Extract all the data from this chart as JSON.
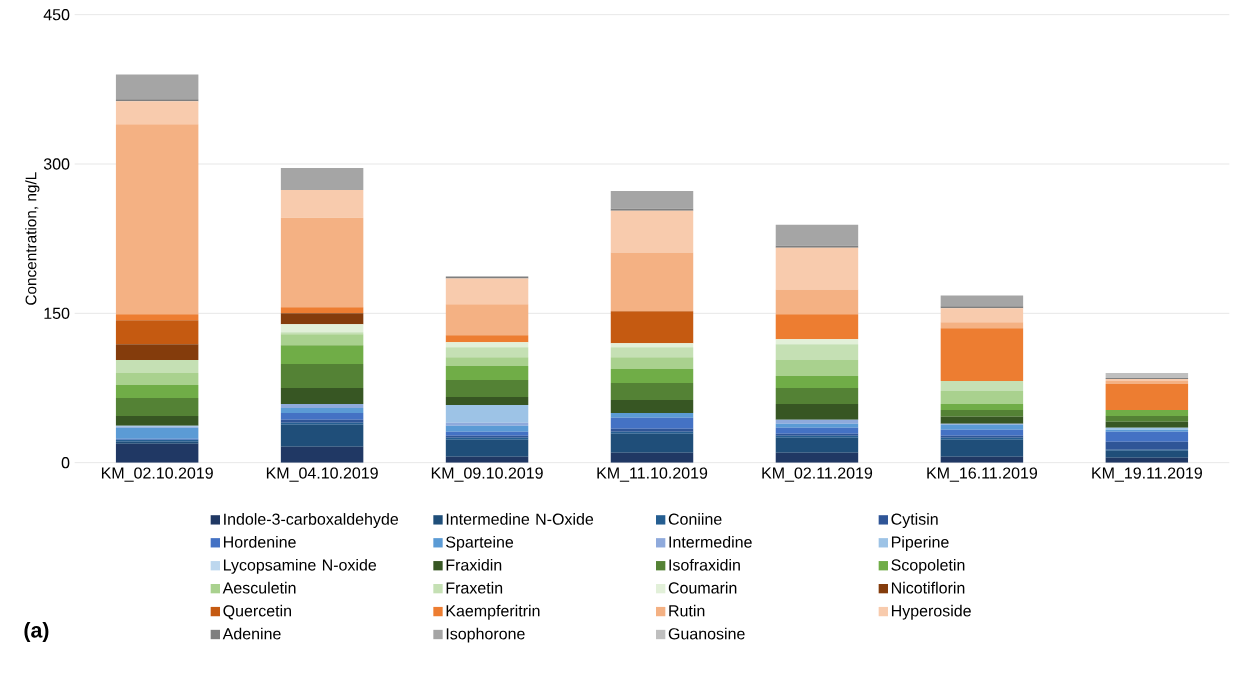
{
  "chart_data": {
    "type": "bar",
    "stacked": true,
    "ylabel": "Concentration, ng/L",
    "annotations": [
      "**(a)**"
    ],
    "categories": [
      "KM_02.10.2019",
      "KM_04.10.2019",
      "KM_09.10.2019",
      "KM_11.10.2019",
      "KM_02.11.2019",
      "KM_16.11.2019",
      "KM_19.11.2019"
    ],
    "ylim": [
      0,
      450
    ],
    "yticks": [
      0,
      150,
      300,
      450
    ],
    "grid": "y",
    "legend": "bottom",
    "series": [
      {
        "name": "Indole-3-carboxaldehyde",
        "color": "#203864",
        "values": [
          19,
          16,
          6,
          10,
          10,
          6,
          5
        ]
      },
      {
        "name": "Intermedine N-Oxide",
        "color": "#1f4e79",
        "values": [
          2,
          22,
          17,
          19,
          15,
          17,
          7
        ]
      },
      {
        "name": "Coniine",
        "color": "#255e91",
        "values": [
          2,
          2,
          2,
          2,
          2,
          2,
          1
        ]
      },
      {
        "name": "Cytisin",
        "color": "#2f5597",
        "values": [
          0,
          3,
          2,
          3,
          2,
          2,
          8
        ]
      },
      {
        "name": "Hordenine",
        "color": "#4472c4",
        "values": [
          1,
          7,
          4,
          11,
          6,
          6,
          10
        ]
      },
      {
        "name": "Sparteine",
        "color": "#5b9bd5",
        "values": [
          11,
          5,
          6,
          5,
          4,
          5,
          2
        ]
      },
      {
        "name": "Intermedine",
        "color": "#8faadc",
        "values": [
          1,
          4,
          3,
          0,
          4,
          1,
          0
        ]
      },
      {
        "name": "Piperine",
        "color": "#9dc3e6",
        "values": [
          1,
          0,
          18,
          0,
          0,
          0,
          2
        ]
      },
      {
        "name": "Lycopsamine N-oxide",
        "color": "#bdd7ee",
        "values": [
          null,
          0,
          0,
          0,
          0,
          0,
          0
        ]
      },
      {
        "name": "Fraxidin",
        "color": "#375623",
        "values": [
          10,
          16,
          8,
          13,
          16,
          7,
          6
        ]
      },
      {
        "name": "Isofraxidin",
        "color": "#548235",
        "values": [
          18,
          24,
          17,
          17,
          16,
          7,
          6
        ]
      },
      {
        "name": "Scopoletin",
        "color": "#70ad47",
        "values": [
          13,
          19,
          14,
          14,
          12,
          6,
          6
        ]
      },
      {
        "name": "Aesculetin",
        "color": "#a9d18e",
        "values": [
          12,
          11,
          9,
          12,
          16,
          13,
          0
        ]
      },
      {
        "name": "Fraxetin",
        "color": "#c5e0b4",
        "values": [
          13,
          2,
          10,
          10,
          16,
          10,
          0
        ]
      },
      {
        "name": "Coumarin",
        "color": "#e2f0d9",
        "values": [
          null,
          8,
          5,
          4,
          5,
          0,
          0
        ]
      },
      {
        "name": "Nicotiflorin",
        "color": "#843c0c",
        "values": [
          16,
          11,
          0,
          0,
          0,
          0,
          0
        ]
      },
      {
        "name": "Quercetin",
        "color": "#c55a11",
        "values": [
          24,
          0,
          0,
          32,
          0,
          0,
          0
        ]
      },
      {
        "name": "Kaempferitrin",
        "color": "#ed7d31",
        "values": [
          6,
          6,
          7,
          0,
          25,
          53,
          26
        ]
      },
      {
        "name": "Rutin",
        "color": "#f4b183",
        "values": [
          191,
          90,
          31,
          59,
          25,
          6,
          3
        ]
      },
      {
        "name": "Hyperoside",
        "color": "#f8cbad",
        "values": [
          23,
          28,
          26,
          42,
          42,
          14,
          2
        ]
      },
      {
        "name": "Adenine",
        "color": "#7f7f7f",
        "values": [
          2,
          0,
          2,
          2,
          2,
          2,
          1
        ]
      },
      {
        "name": "Isophorone",
        "color": "#a5a5a5",
        "values": [
          25,
          22,
          0,
          18,
          21,
          11,
          0
        ]
      },
      {
        "name": "Guanosine",
        "color": "#bfbfbf",
        "values": [
          0,
          0,
          0,
          0,
          0,
          0,
          5
        ]
      }
    ]
  }
}
